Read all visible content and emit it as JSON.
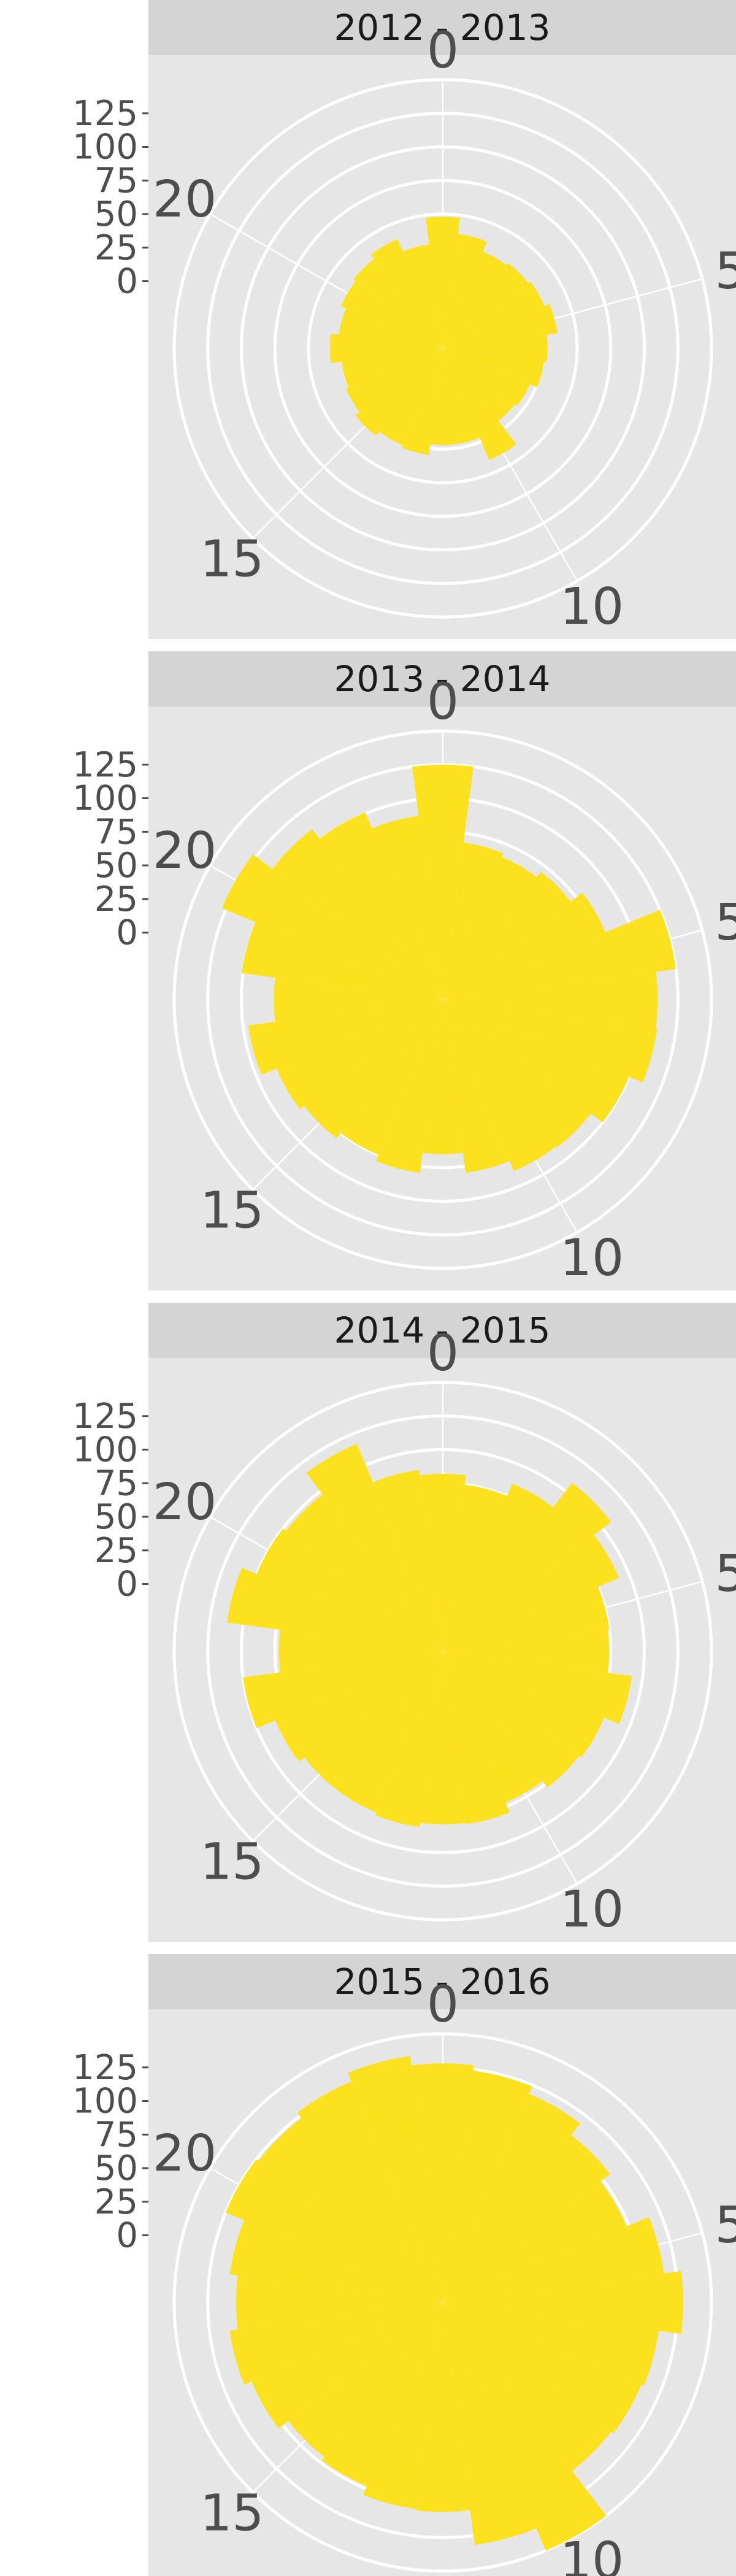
{
  "chart_data": {
    "type": "bar",
    "coord": "polar",
    "bar_color": "#fce21e",
    "background_color": "#e6e6e6",
    "strip_color": "#d4d4d4",
    "grid": true,
    "y_ticks": [
      0,
      25,
      50,
      75,
      100,
      125
    ],
    "ylim": [
      -50,
      150
    ],
    "theta_ticks": [
      0,
      5,
      10,
      15,
      20
    ],
    "hours": [
      0,
      1,
      2,
      3,
      4,
      5,
      6,
      7,
      8,
      9,
      10,
      11,
      12,
      13,
      14,
      15,
      16,
      17,
      18,
      19,
      20,
      21,
      22,
      23
    ],
    "panels": [
      {
        "title": "2012 - 2013",
        "values": [
          48,
          36,
          28,
          30,
          32,
          36,
          28,
          26,
          20,
          18,
          40,
          22,
          22,
          30,
          28,
          32,
          28,
          26,
          34,
          28,
          32,
          34,
          38,
          28
        ]
      },
      {
        "title": "2013 - 2014",
        "values": [
          125,
          68,
          65,
          70,
          81,
          125,
          110,
          111,
          100,
          89,
          88,
          80,
          65,
          80,
          75,
          80,
          84,
          96,
          76,
          101,
          128,
          110,
          101,
          88
        ]
      },
      {
        "title": "2014 - 2015",
        "values": [
          82,
          75,
          85,
          108,
          92,
          75,
          74,
          92,
          80,
          78,
          72,
          80,
          79,
          82,
          80,
          80,
          85,
          100,
          72,
          112,
          100,
          97,
          117,
          86
        ]
      },
      {
        "title": "2015 - 2016",
        "values": [
          128,
          124,
          118,
          107,
          98,
          116,
          129,
          112,
          110,
          108,
          150,
          132,
          106,
          105,
          98,
          95,
          104,
          110,
          104,
          110,
          125,
          123,
          128,
          135
        ]
      }
    ]
  }
}
